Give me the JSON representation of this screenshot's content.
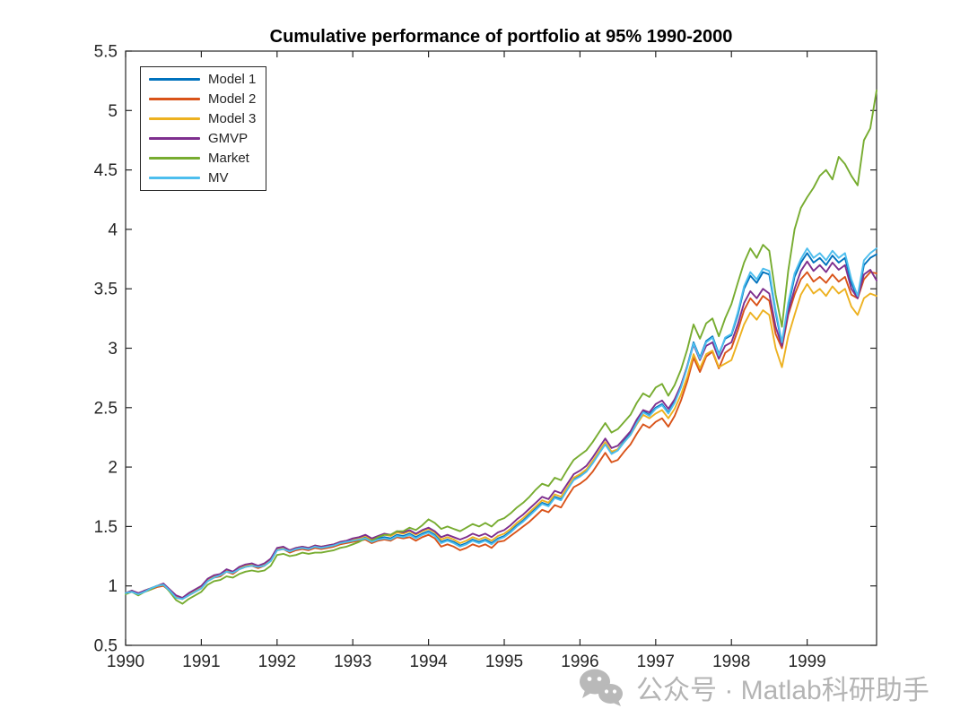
{
  "figure": {
    "background": "#ffffff",
    "axis_color": "#262626"
  },
  "watermark": {
    "text": "公众号 · Matlab科研助手",
    "icon": "wechat-icon",
    "color": "#b4b4b4"
  },
  "chart_data": {
    "type": "line",
    "title": "Cumulative performance of portfolio at 95% 1990-2000",
    "xlabel": "",
    "ylabel": "",
    "xlim": [
      1990,
      1999.9167
    ],
    "ylim": [
      0.5,
      5.5
    ],
    "grid": false,
    "legend_position": "top-left",
    "x_ticks": [
      1990,
      1991,
      1992,
      1993,
      1994,
      1995,
      1996,
      1997,
      1998,
      1999
    ],
    "x_tick_labels": [
      "1990",
      "1991",
      "1992",
      "1993",
      "1994",
      "1995",
      "1996",
      "1997",
      "1998",
      "1999"
    ],
    "y_ticks": [
      0.5,
      1,
      1.5,
      2,
      2.5,
      3,
      3.5,
      4,
      4.5,
      5,
      5.5
    ],
    "y_tick_labels": [
      "0.5",
      "1",
      "1.5",
      "2",
      "2.5",
      "3",
      "3.5",
      "4",
      "4.5",
      "5",
      "5.5"
    ],
    "x_start_year": 1990,
    "x_step": "monthly",
    "series": [
      {
        "name": "Model 1",
        "color": "#0072BD",
        "values": [
          0.94,
          0.96,
          0.93,
          0.96,
          0.98,
          1.0,
          1.01,
          0.96,
          0.91,
          0.89,
          0.93,
          0.96,
          0.99,
          1.05,
          1.08,
          1.09,
          1.13,
          1.11,
          1.15,
          1.17,
          1.18,
          1.16,
          1.18,
          1.22,
          1.31,
          1.32,
          1.29,
          1.31,
          1.32,
          1.31,
          1.33,
          1.32,
          1.33,
          1.34,
          1.36,
          1.37,
          1.38,
          1.39,
          1.41,
          1.38,
          1.4,
          1.41,
          1.4,
          1.43,
          1.42,
          1.44,
          1.41,
          1.44,
          1.46,
          1.43,
          1.37,
          1.39,
          1.37,
          1.34,
          1.36,
          1.39,
          1.37,
          1.39,
          1.36,
          1.4,
          1.42,
          1.46,
          1.51,
          1.55,
          1.6,
          1.65,
          1.7,
          1.68,
          1.75,
          1.73,
          1.82,
          1.9,
          1.93,
          1.97,
          2.04,
          2.12,
          2.2,
          2.12,
          2.15,
          2.22,
          2.28,
          2.38,
          2.47,
          2.44,
          2.5,
          2.53,
          2.46,
          2.55,
          2.68,
          2.85,
          3.05,
          2.92,
          3.06,
          3.1,
          2.95,
          3.08,
          3.11,
          3.28,
          3.5,
          3.61,
          3.55,
          3.64,
          3.62,
          3.3,
          3.03,
          3.35,
          3.6,
          3.72,
          3.8,
          3.72,
          3.76,
          3.7,
          3.78,
          3.72,
          3.76,
          3.55,
          3.42,
          3.7,
          3.76,
          3.79
        ]
      },
      {
        "name": "Model 2",
        "color": "#D95319",
        "values": [
          0.94,
          0.95,
          0.93,
          0.95,
          0.97,
          0.99,
          1.0,
          0.96,
          0.9,
          0.89,
          0.92,
          0.95,
          0.98,
          1.04,
          1.07,
          1.08,
          1.12,
          1.1,
          1.14,
          1.16,
          1.17,
          1.15,
          1.17,
          1.21,
          1.3,
          1.31,
          1.28,
          1.3,
          1.31,
          1.3,
          1.32,
          1.31,
          1.32,
          1.33,
          1.35,
          1.36,
          1.37,
          1.38,
          1.39,
          1.36,
          1.38,
          1.39,
          1.38,
          1.41,
          1.4,
          1.41,
          1.38,
          1.41,
          1.43,
          1.4,
          1.33,
          1.35,
          1.33,
          1.3,
          1.32,
          1.35,
          1.33,
          1.35,
          1.32,
          1.37,
          1.38,
          1.42,
          1.46,
          1.5,
          1.54,
          1.59,
          1.64,
          1.62,
          1.68,
          1.66,
          1.75,
          1.83,
          1.86,
          1.9,
          1.96,
          2.04,
          2.12,
          2.04,
          2.06,
          2.13,
          2.19,
          2.28,
          2.36,
          2.33,
          2.38,
          2.41,
          2.34,
          2.43,
          2.56,
          2.72,
          2.92,
          2.8,
          2.93,
          2.97,
          2.83,
          2.96,
          3.0,
          3.15,
          3.32,
          3.42,
          3.36,
          3.44,
          3.4,
          3.12,
          3.0,
          3.28,
          3.45,
          3.58,
          3.64,
          3.56,
          3.6,
          3.55,
          3.62,
          3.56,
          3.6,
          3.45,
          3.42,
          3.58,
          3.64,
          3.63
        ]
      },
      {
        "name": "Model 3",
        "color": "#EDB120",
        "values": [
          0.94,
          0.96,
          0.93,
          0.96,
          0.98,
          1.0,
          1.01,
          0.97,
          0.91,
          0.9,
          0.93,
          0.96,
          0.99,
          1.05,
          1.08,
          1.1,
          1.13,
          1.12,
          1.15,
          1.17,
          1.18,
          1.17,
          1.18,
          1.23,
          1.31,
          1.32,
          1.3,
          1.32,
          1.33,
          1.32,
          1.34,
          1.33,
          1.34,
          1.35,
          1.37,
          1.38,
          1.39,
          1.4,
          1.42,
          1.39,
          1.41,
          1.43,
          1.42,
          1.45,
          1.44,
          1.46,
          1.43,
          1.46,
          1.48,
          1.45,
          1.39,
          1.41,
          1.39,
          1.36,
          1.38,
          1.41,
          1.39,
          1.41,
          1.38,
          1.42,
          1.44,
          1.48,
          1.53,
          1.57,
          1.62,
          1.67,
          1.72,
          1.7,
          1.77,
          1.75,
          1.83,
          1.91,
          1.94,
          1.98,
          2.05,
          2.13,
          2.21,
          2.13,
          2.15,
          2.21,
          2.27,
          2.36,
          2.44,
          2.41,
          2.45,
          2.48,
          2.41,
          2.49,
          2.61,
          2.76,
          2.95,
          2.83,
          2.95,
          2.98,
          2.84,
          2.87,
          2.9,
          3.05,
          3.2,
          3.3,
          3.24,
          3.32,
          3.28,
          3.0,
          2.84,
          3.1,
          3.28,
          3.45,
          3.54,
          3.46,
          3.5,
          3.44,
          3.52,
          3.46,
          3.5,
          3.35,
          3.28,
          3.42,
          3.46,
          3.44
        ]
      },
      {
        "name": "GMVP",
        "color": "#7E2F8E",
        "values": [
          0.94,
          0.96,
          0.94,
          0.96,
          0.98,
          1.0,
          1.02,
          0.97,
          0.92,
          0.9,
          0.94,
          0.97,
          1.0,
          1.06,
          1.09,
          1.1,
          1.14,
          1.12,
          1.16,
          1.18,
          1.19,
          1.17,
          1.19,
          1.23,
          1.32,
          1.33,
          1.3,
          1.32,
          1.33,
          1.32,
          1.34,
          1.33,
          1.34,
          1.35,
          1.37,
          1.38,
          1.4,
          1.41,
          1.43,
          1.4,
          1.42,
          1.44,
          1.43,
          1.46,
          1.45,
          1.47,
          1.44,
          1.47,
          1.49,
          1.46,
          1.41,
          1.43,
          1.41,
          1.39,
          1.41,
          1.44,
          1.42,
          1.44,
          1.41,
          1.45,
          1.47,
          1.51,
          1.56,
          1.6,
          1.65,
          1.7,
          1.75,
          1.73,
          1.8,
          1.78,
          1.86,
          1.94,
          1.97,
          2.01,
          2.08,
          2.16,
          2.24,
          2.16,
          2.18,
          2.24,
          2.3,
          2.4,
          2.48,
          2.46,
          2.53,
          2.56,
          2.49,
          2.57,
          2.69,
          2.85,
          3.03,
          2.9,
          3.02,
          3.05,
          2.91,
          3.02,
          3.05,
          3.2,
          3.38,
          3.48,
          3.42,
          3.5,
          3.46,
          3.18,
          3.02,
          3.3,
          3.5,
          3.65,
          3.73,
          3.65,
          3.7,
          3.64,
          3.72,
          3.66,
          3.7,
          3.5,
          3.42,
          3.62,
          3.66,
          3.57
        ]
      },
      {
        "name": "Market",
        "color": "#77AC30",
        "values": [
          0.93,
          0.95,
          0.92,
          0.95,
          0.97,
          1.0,
          1.01,
          0.95,
          0.88,
          0.85,
          0.89,
          0.92,
          0.95,
          1.01,
          1.04,
          1.05,
          1.08,
          1.07,
          1.1,
          1.12,
          1.13,
          1.12,
          1.13,
          1.17,
          1.26,
          1.27,
          1.25,
          1.26,
          1.28,
          1.27,
          1.28,
          1.28,
          1.29,
          1.3,
          1.32,
          1.33,
          1.35,
          1.37,
          1.4,
          1.38,
          1.41,
          1.43,
          1.43,
          1.46,
          1.46,
          1.49,
          1.47,
          1.51,
          1.56,
          1.53,
          1.48,
          1.5,
          1.48,
          1.46,
          1.49,
          1.52,
          1.5,
          1.53,
          1.5,
          1.55,
          1.57,
          1.61,
          1.66,
          1.7,
          1.75,
          1.81,
          1.86,
          1.84,
          1.91,
          1.89,
          1.98,
          2.06,
          2.1,
          2.14,
          2.21,
          2.29,
          2.37,
          2.29,
          2.32,
          2.38,
          2.44,
          2.54,
          2.62,
          2.59,
          2.67,
          2.7,
          2.6,
          2.69,
          2.82,
          2.99,
          3.2,
          3.08,
          3.21,
          3.25,
          3.1,
          3.25,
          3.37,
          3.55,
          3.72,
          3.84,
          3.76,
          3.87,
          3.82,
          3.45,
          3.18,
          3.65,
          4.0,
          4.18,
          4.27,
          4.35,
          4.45,
          4.5,
          4.42,
          4.61,
          4.55,
          4.45,
          4.37,
          4.75,
          4.85,
          5.17
        ]
      },
      {
        "name": "MV",
        "color": "#4DBEEE",
        "values": [
          0.94,
          0.95,
          0.93,
          0.95,
          0.98,
          1.0,
          1.01,
          0.96,
          0.9,
          0.89,
          0.92,
          0.95,
          0.98,
          1.04,
          1.07,
          1.09,
          1.12,
          1.11,
          1.14,
          1.16,
          1.17,
          1.16,
          1.17,
          1.21,
          1.3,
          1.31,
          1.29,
          1.31,
          1.32,
          1.31,
          1.33,
          1.32,
          1.33,
          1.34,
          1.36,
          1.37,
          1.38,
          1.39,
          1.4,
          1.37,
          1.39,
          1.4,
          1.39,
          1.42,
          1.41,
          1.43,
          1.4,
          1.43,
          1.45,
          1.42,
          1.36,
          1.38,
          1.36,
          1.33,
          1.35,
          1.38,
          1.36,
          1.38,
          1.35,
          1.39,
          1.41,
          1.45,
          1.5,
          1.54,
          1.59,
          1.64,
          1.69,
          1.67,
          1.74,
          1.72,
          1.81,
          1.89,
          1.92,
          1.96,
          2.03,
          2.11,
          2.19,
          2.11,
          2.14,
          2.21,
          2.27,
          2.37,
          2.46,
          2.43,
          2.49,
          2.52,
          2.45,
          2.54,
          2.67,
          2.84,
          3.04,
          2.91,
          3.05,
          3.09,
          2.94,
          3.09,
          3.12,
          3.3,
          3.52,
          3.64,
          3.58,
          3.67,
          3.65,
          3.32,
          3.05,
          3.38,
          3.63,
          3.75,
          3.84,
          3.76,
          3.8,
          3.74,
          3.82,
          3.76,
          3.8,
          3.58,
          3.44,
          3.74,
          3.8,
          3.84
        ]
      }
    ]
  }
}
